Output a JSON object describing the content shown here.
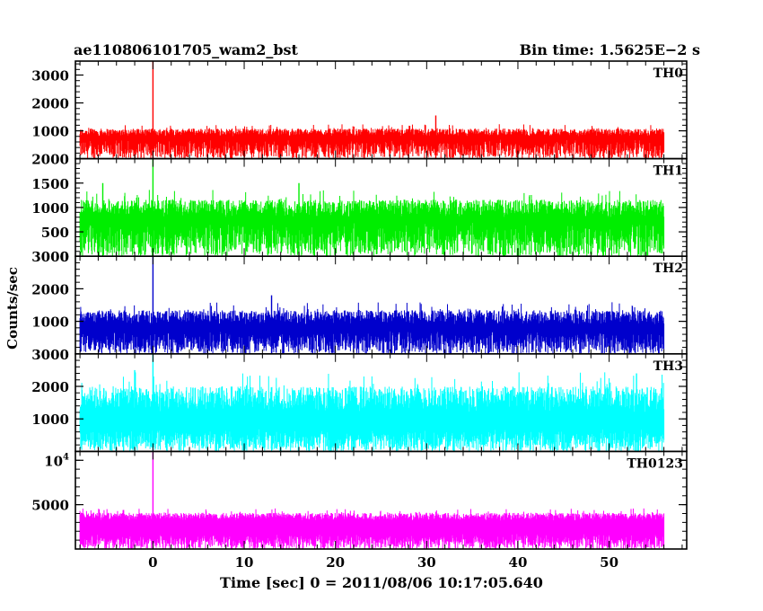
{
  "chart_data": {
    "type": "line",
    "title_left": "ae110806101705_wam2_bst",
    "title_right": "Bin time: 1.5625E−2 s",
    "xlabel": "Time [sec] 0 = 2011/08/06 10:17:05.640",
    "ylabel": "Counts/sec",
    "xlim": [
      -8.5,
      58.5
    ],
    "x_ticks": [
      0,
      10,
      20,
      30,
      40,
      50
    ],
    "x_tick_labels": [
      "0",
      "10",
      "20",
      "30",
      "40",
      "50"
    ],
    "x_data_range": [
      -8.0,
      56.0
    ],
    "grid": false,
    "panels": [
      {
        "name": "TH0",
        "color": "#ff0000",
        "ylim": [
          0,
          3500
        ],
        "y_tick_labels": [
          {
            "value": 1000,
            "label": "1000"
          },
          {
            "value": 2000,
            "label": "2000"
          },
          {
            "value": 3000,
            "label": "3000"
          }
        ],
        "baseline": [
          0,
          700
        ],
        "typical_high": [
          800,
          1150
        ],
        "spikes": [
          {
            "x": 0.0,
            "y": 3500
          },
          {
            "x": 31.0,
            "y": 1550
          }
        ]
      },
      {
        "name": "TH1",
        "color": "#00ee00",
        "ylim": [
          0,
          2000
        ],
        "y_tick_labels": [
          {
            "value": 0,
            "label": "0"
          },
          {
            "value": 500,
            "label": "500"
          },
          {
            "value": 1000,
            "label": "1000"
          },
          {
            "value": 1500,
            "label": "1500"
          },
          {
            "value": 2000,
            "label": "2000"
          }
        ],
        "baseline": [
          0,
          700
        ],
        "typical_high": [
          800,
          1250
        ],
        "spikes": [
          {
            "x": 0.0,
            "y": 2000
          },
          {
            "x": -5.5,
            "y": 1500
          },
          {
            "x": 16.0,
            "y": 1500
          }
        ]
      },
      {
        "name": "TH2",
        "color": "#0000cc",
        "ylim": [
          0,
          3000
        ],
        "y_tick_labels": [
          {
            "value": 1000,
            "label": "1000"
          },
          {
            "value": 2000,
            "label": "2000"
          },
          {
            "value": 3000,
            "label": "3000"
          }
        ],
        "baseline": [
          0,
          700
        ],
        "typical_high": [
          900,
          1450
        ],
        "spikes": [
          {
            "x": 0.0,
            "y": 3000
          },
          {
            "x": 13.0,
            "y": 1800
          }
        ]
      },
      {
        "name": "TH3",
        "color": "#00ffff",
        "ylim": [
          0,
          3000
        ],
        "y_tick_labels": [
          {
            "value": 1000,
            "label": "1000"
          },
          {
            "value": 2000,
            "label": "2000"
          },
          {
            "value": 3000,
            "label": "3000"
          }
        ],
        "baseline": [
          0,
          700
        ],
        "typical_high": [
          1200,
          2200
        ],
        "spikes": [
          {
            "x": 0.0,
            "y": 3000
          },
          {
            "x": -2.0,
            "y": 2500
          },
          {
            "x": 53.0,
            "y": 2400
          }
        ]
      },
      {
        "name": "TH0123",
        "color": "#ff00ff",
        "ylim": [
          0,
          11000
        ],
        "y_tick_labels": [
          {
            "value": 5000,
            "label": "5000"
          },
          {
            "value": 10000,
            "label": "10",
            "sup": "4"
          }
        ],
        "baseline": [
          0,
          1700
        ],
        "typical_high": [
          3200,
          4300
        ],
        "spikes": [
          {
            "x": 0.0,
            "y": 11000
          }
        ]
      }
    ]
  }
}
